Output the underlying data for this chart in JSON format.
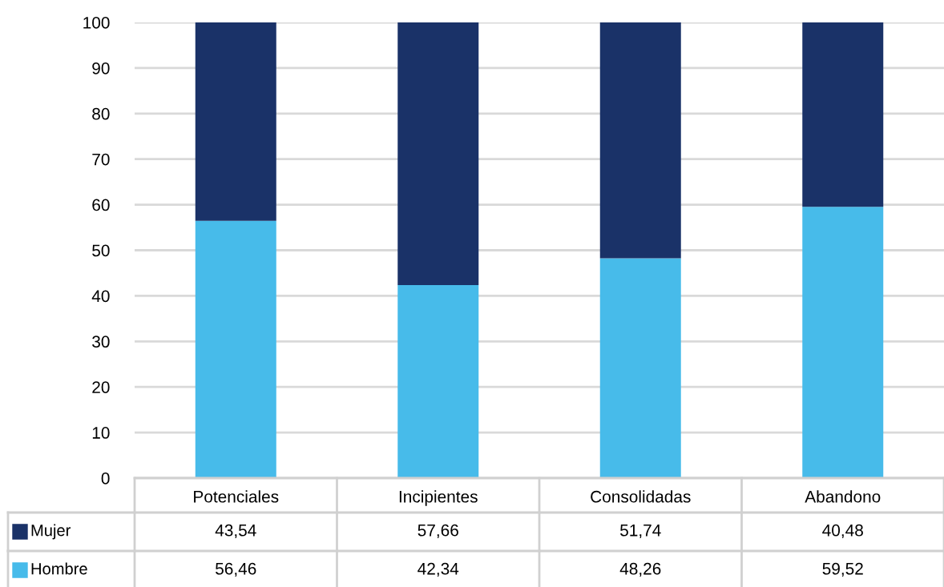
{
  "chart_data": {
    "type": "bar",
    "stacked": true,
    "categories": [
      "Potenciales",
      "Incipientes",
      "Consolidadas",
      "Abandono"
    ],
    "series": [
      {
        "name": "Hombre",
        "color": "#47bbea",
        "values": [
          56.46,
          42.34,
          48.26,
          59.52
        ],
        "value_labels": [
          "56,46",
          "42,34",
          "48,26",
          "59,52"
        ]
      },
      {
        "name": "Mujer",
        "color": "#1a3268",
        "values": [
          43.54,
          57.66,
          51.74,
          40.48
        ],
        "value_labels": [
          "43,54",
          "57,66",
          "51,74",
          "40,48"
        ]
      }
    ],
    "ylim": [
      0,
      100
    ],
    "yticks": [
      0,
      10,
      20,
      30,
      40,
      50,
      60,
      70,
      80,
      90,
      100
    ],
    "grid": "y",
    "legend": "bottom left"
  }
}
